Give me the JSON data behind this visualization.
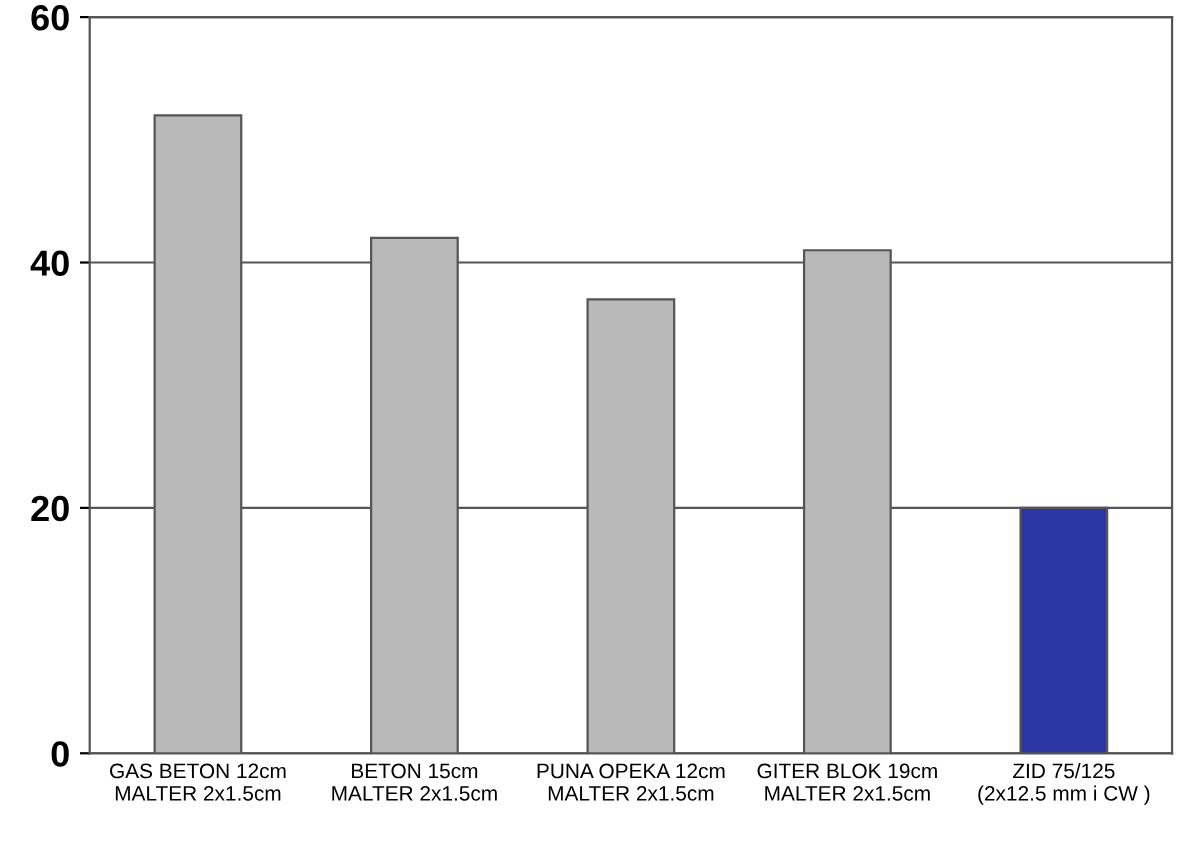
{
  "chart_data": {
    "type": "bar",
    "categories": [
      "GAS BETON 12cm\nMALTER 2x1.5cm",
      "BETON 15cm\nMALTER 2x1.5cm",
      "PUNA OPEKA 12cm\nMALTER 2x1.5cm",
      "GITER BLOK 19cm\nMALTER 2x1.5cm",
      "ZID 75/125\n(2x12.5 mm i CW )"
    ],
    "values": [
      52,
      42,
      37,
      41,
      20
    ],
    "colors": [
      "#b9b9b9",
      "#b9b9b9",
      "#b9b9b9",
      "#b9b9b9",
      "#2b35a3"
    ],
    "ylim": [
      0,
      60
    ],
    "yticks": [
      0,
      20,
      40,
      60
    ],
    "grid": "y"
  }
}
